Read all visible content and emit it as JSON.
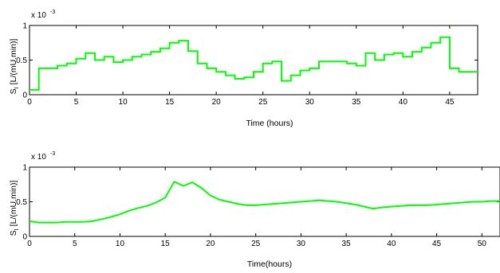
{
  "chart_data": [
    {
      "type": "line",
      "step": true,
      "title": "",
      "xlabel": "Time (hours)",
      "ylabel": "S",
      "ylabel_sub": "I",
      "ylabel_rest": "[L/(mU.min)]",
      "y_multiplier": "x 10",
      "y_multiplier_exp": "-3",
      "xlim": [
        0,
        48
      ],
      "ylim": [
        0,
        1
      ],
      "xticks": [
        0,
        5,
        10,
        15,
        20,
        25,
        30,
        35,
        40,
        45
      ],
      "yticks": [
        0,
        0.5,
        1
      ],
      "ytick_labels": [
        "0",
        "0.5",
        "1"
      ],
      "grid": false,
      "color": "#00ff00",
      "series": [
        {
          "x": [
            0,
            1,
            3,
            4,
            5,
            6,
            7,
            8,
            9,
            10,
            11,
            12,
            13,
            14,
            15,
            16,
            17,
            18,
            19,
            20,
            21,
            22,
            23,
            24,
            25,
            26,
            27,
            28,
            29,
            30,
            31,
            32,
            33,
            34,
            35,
            36,
            37,
            38,
            39,
            40,
            41,
            42,
            43,
            44,
            45,
            46,
            47
          ],
          "y": [
            0.07,
            0.38,
            0.42,
            0.45,
            0.52,
            0.6,
            0.5,
            0.55,
            0.47,
            0.5,
            0.55,
            0.58,
            0.62,
            0.67,
            0.75,
            0.78,
            0.63,
            0.45,
            0.38,
            0.33,
            0.28,
            0.23,
            0.25,
            0.33,
            0.45,
            0.48,
            0.2,
            0.28,
            0.35,
            0.38,
            0.48,
            0.48,
            0.48,
            0.45,
            0.42,
            0.6,
            0.5,
            0.58,
            0.6,
            0.55,
            0.62,
            0.68,
            0.75,
            0.83,
            0.38,
            0.33,
            0.33
          ]
        }
      ]
    },
    {
      "type": "line",
      "title": "",
      "xlabel": "Time(hours)",
      "ylabel": "S",
      "ylabel_sub": "I",
      "ylabel_rest": "[L/(mU.min)]",
      "y_multiplier": "x 10",
      "y_multiplier_exp": "-3",
      "xlim": [
        0,
        52
      ],
      "ylim": [
        0,
        1
      ],
      "xticks": [
        0,
        5,
        10,
        15,
        20,
        25,
        30,
        35,
        40,
        45,
        50
      ],
      "yticks": [
        0,
        0.5,
        1
      ],
      "ytick_labels": [
        "0",
        "0.5",
        "1"
      ],
      "grid": false,
      "color": "#00ff00",
      "series": [
        {
          "x": [
            0,
            1,
            2,
            3,
            4,
            5,
            6,
            7,
            8,
            9,
            10,
            11,
            12,
            13,
            14,
            15,
            16,
            17,
            18,
            19,
            20,
            21,
            22,
            23,
            24,
            25,
            26,
            27,
            28,
            29,
            30,
            31,
            32,
            33,
            34,
            35,
            36,
            37,
            38,
            39,
            40,
            41,
            42,
            43,
            44,
            45,
            46,
            47,
            48,
            49,
            50,
            51,
            52
          ],
          "y": [
            0.22,
            0.2,
            0.2,
            0.2,
            0.21,
            0.21,
            0.21,
            0.22,
            0.25,
            0.28,
            0.32,
            0.37,
            0.41,
            0.44,
            0.49,
            0.56,
            0.79,
            0.73,
            0.78,
            0.7,
            0.59,
            0.53,
            0.5,
            0.47,
            0.45,
            0.45,
            0.46,
            0.47,
            0.48,
            0.49,
            0.5,
            0.51,
            0.52,
            0.51,
            0.5,
            0.48,
            0.46,
            0.43,
            0.4,
            0.42,
            0.43,
            0.44,
            0.45,
            0.45,
            0.45,
            0.46,
            0.47,
            0.48,
            0.49,
            0.5,
            0.5,
            0.51,
            0.51
          ]
        }
      ]
    }
  ]
}
